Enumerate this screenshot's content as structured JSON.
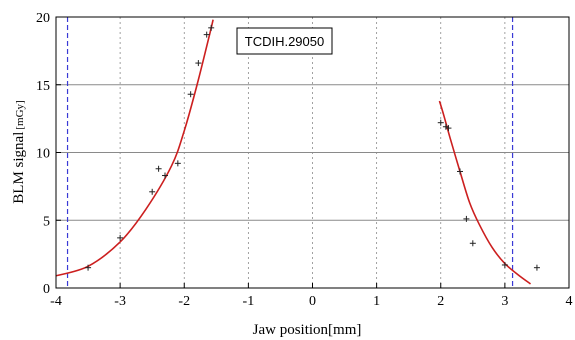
{
  "chart_data": {
    "type": "scatter",
    "xlabel": "Jaw position[mm]",
    "ylabel_main": "BLM signal",
    "ylabel_unit": "[mGy]",
    "xlim": [
      -4,
      4
    ],
    "ylim": [
      0,
      20
    ],
    "x_ticks": [
      -4,
      -3,
      -2,
      -1,
      0,
      1,
      2,
      3,
      4
    ],
    "y_ticks": [
      0,
      5,
      10,
      15,
      20
    ],
    "grid": "horizontal-solid-vertical-dashed",
    "annotation": "TCDIH.29050",
    "colors": {
      "fit_curve": "#cc1f1f",
      "limit_lines": "#3a3ad6",
      "points": "#222222",
      "grid": "#8a8a8a"
    },
    "limit_lines_x": [
      -3.82,
      3.12
    ],
    "series": [
      {
        "marker": "+",
        "x": [
          -3.5,
          -3.0,
          -2.5,
          -2.4,
          -2.3,
          -2.1,
          -1.9,
          -1.78,
          -1.65,
          -1.58
        ],
        "y": [
          1.5,
          3.7,
          7.1,
          8.8,
          8.3,
          9.2,
          14.3,
          16.6,
          18.7,
          19.2
        ]
      },
      {
        "marker": "+",
        "x": [
          2.0,
          2.08,
          2.12,
          2.3,
          2.4,
          2.5,
          3.0,
          3.5
        ],
        "y": [
          12.2,
          11.9,
          11.8,
          8.6,
          5.1,
          3.3,
          1.7,
          1.5
        ]
      }
    ],
    "fit_left": {
      "x": [
        -4.0,
        -3.5,
        -3.0,
        -2.6,
        -2.2,
        -2.0,
        -1.8,
        -1.6,
        -1.55
      ],
      "y": [
        0.9,
        1.6,
        3.4,
        5.8,
        9.0,
        11.6,
        15.0,
        18.8,
        19.8
      ]
    },
    "fit_right": {
      "x": [
        1.98,
        2.05,
        2.15,
        2.3,
        2.45,
        2.6,
        2.8,
        3.0,
        3.2,
        3.4
      ],
      "y": [
        13.8,
        12.7,
        11.0,
        8.6,
        6.3,
        4.7,
        3.0,
        1.8,
        1.0,
        0.3
      ]
    }
  }
}
